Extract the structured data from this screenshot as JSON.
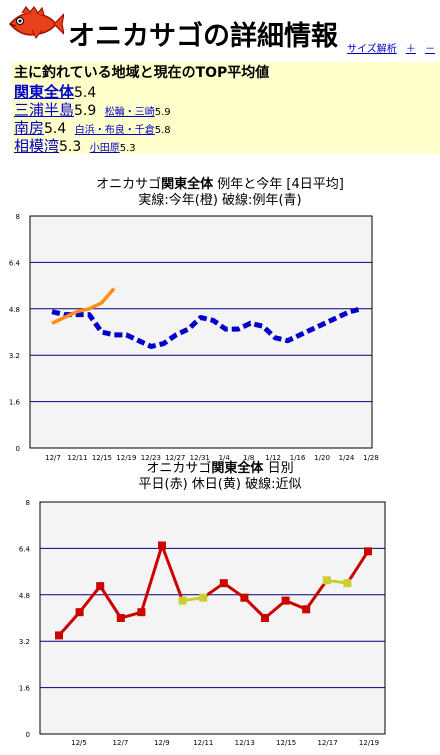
{
  "header": {
    "title": "オニカサゴの詳細情報",
    "links": [
      "サイズ解析",
      "＋",
      "－"
    ]
  },
  "summary": {
    "heading": "主に釣れている地域と現在のTOP平均値",
    "rows": [
      {
        "name": "関東全体",
        "value": "5.4",
        "subs": []
      },
      {
        "name": "三浦半島",
        "value": "5.9",
        "subs": [
          {
            "name": "松輪・三崎",
            "value": "5.9"
          }
        ]
      },
      {
        "name": "南房",
        "value": "5.4",
        "subs": [
          {
            "name": "白浜・布良・千倉",
            "value": "5.8"
          }
        ]
      },
      {
        "name": "相模湾",
        "value": "5.3",
        "subs": [
          {
            "name": "小田原",
            "value": "5.3"
          }
        ]
      }
    ]
  },
  "chart1": {
    "title_prefix": "オニカサゴ",
    "title_bold": "関東全体",
    "title_suffix": "  例年と今年 [4日平均]",
    "subtitle": "実線:今年(橙)  破線:例年(青)"
  },
  "chart2": {
    "title_prefix": "オニカサゴ",
    "title_bold": "関東全体",
    "title_suffix": "  日別",
    "subtitle": "平日(赤)  休日(黄)  破線:近似"
  },
  "chart_data": [
    {
      "type": "line",
      "ylim": [
        0,
        8
      ],
      "yticks": [
        "0",
        "1.6",
        "3.2",
        "4.8",
        "6.4",
        "8"
      ],
      "xticks": [
        "12/7",
        "12/11",
        "12/15",
        "12/19",
        "12/23",
        "12/27",
        "12/31",
        "1/4",
        "1/8",
        "1/12",
        "1/16",
        "1/20",
        "1/24",
        "1/28"
      ],
      "grid": true,
      "series": [
        {
          "key": "avg",
          "color": "#0000cc",
          "dashed": true,
          "values": [
            4.7,
            4.6,
            4.6,
            4.6,
            4.0,
            3.9,
            3.9,
            3.7,
            3.5,
            3.6,
            3.9,
            4.1,
            4.5,
            4.4,
            4.1,
            4.1,
            4.3,
            4.2,
            3.8,
            3.7,
            3.9,
            4.1,
            4.3,
            4.5,
            4.7,
            4.8
          ]
        },
        {
          "key": "cur",
          "color": "#ff8c1a",
          "dashed": false,
          "values": [
            4.3,
            4.5,
            4.7,
            4.8,
            5.0,
            5.5
          ]
        }
      ]
    },
    {
      "type": "line",
      "ylim": [
        0,
        8
      ],
      "yticks": [
        "0",
        "1.6",
        "3.2",
        "4.8",
        "6.4",
        "8"
      ],
      "xticks": [
        "12/5",
        "12/7",
        "12/9",
        "12/11",
        "12/13",
        "12/15",
        "12/17",
        "12/19"
      ],
      "grid": true,
      "points": [
        {
          "y": 3.4,
          "day": "weekday"
        },
        {
          "y": 4.2,
          "day": "weekday"
        },
        {
          "y": 5.1,
          "day": "weekday"
        },
        {
          "y": 4.0,
          "day": "weekday"
        },
        {
          "y": 4.2,
          "day": "weekday"
        },
        {
          "y": 6.5,
          "day": "weekday"
        },
        {
          "y": 4.6,
          "day": "holiday"
        },
        {
          "y": 4.7,
          "day": "holiday"
        },
        {
          "y": 5.2,
          "day": "weekday"
        },
        {
          "y": 4.7,
          "day": "weekday"
        },
        {
          "y": 4.0,
          "day": "weekday"
        },
        {
          "y": 4.6,
          "day": "weekday"
        },
        {
          "y": 4.3,
          "day": "weekday"
        },
        {
          "y": 5.3,
          "day": "holiday"
        },
        {
          "y": 5.2,
          "day": "holiday"
        },
        {
          "y": 6.3,
          "day": "weekday"
        }
      ],
      "colors": {
        "weekday": "#cc0000",
        "holiday": "#cccc33"
      }
    }
  ]
}
